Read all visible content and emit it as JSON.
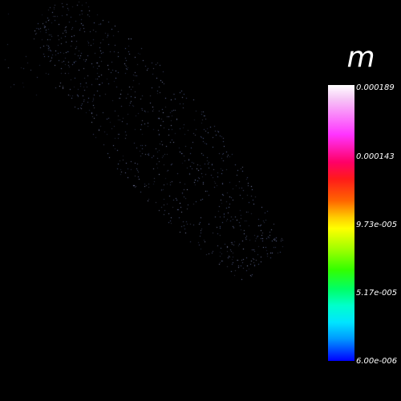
{
  "legend": {
    "title": "m",
    "ticks": [
      "0.000189",
      "0.000143",
      "9.73e-005",
      "5.17e-005",
      "6.00e-006"
    ],
    "range": [
      6e-06,
      0.000189
    ],
    "colormap_stops": [
      "#ffffff",
      "#ff33ff",
      "#ff0066",
      "#ff6600",
      "#ffff00",
      "#33ff00",
      "#00ffcc",
      "#0099ff",
      "#0000ff"
    ]
  },
  "scene": {
    "background": "#000000",
    "point_color": "#8fa8ff"
  }
}
